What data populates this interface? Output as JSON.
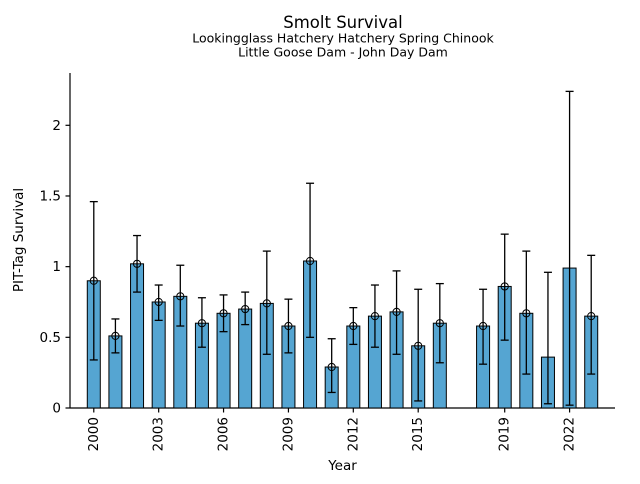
{
  "chart_data": {
    "type": "bar",
    "title": "Smolt Survival",
    "subtitle_line1": "Lookingglass Hatchery Hatchery Spring Chinook",
    "subtitle_line2": "Little Goose Dam - John Day Dam",
    "xlabel": "Year",
    "ylabel": "PIT-Tag Survival",
    "xlim": [
      1998.9,
      2024.1
    ],
    "ylim": [
      0,
      2.37
    ],
    "x_ticks": [
      2000,
      2003,
      2006,
      2009,
      2012,
      2015,
      2019,
      2022
    ],
    "y_ticks": [
      0,
      0.5,
      1,
      1.5,
      2
    ],
    "grid": false,
    "legend_position": "none",
    "missing_years": [
      2017
    ],
    "bar_color": "#55A5D2",
    "bar_edge_color": "#000000",
    "errorbar_color": "#000000",
    "series": [
      {
        "name": "PIT-Tag Survival",
        "points": [
          {
            "year": 2000,
            "value": 0.9,
            "err_lo": 0.34,
            "err_hi": 1.46,
            "marker": true
          },
          {
            "year": 2001,
            "value": 0.51,
            "err_lo": 0.39,
            "err_hi": 0.63,
            "marker": true
          },
          {
            "year": 2002,
            "value": 1.02,
            "err_lo": 0.82,
            "err_hi": 1.22,
            "marker": true
          },
          {
            "year": 2003,
            "value": 0.75,
            "err_lo": 0.62,
            "err_hi": 0.87,
            "marker": true
          },
          {
            "year": 2004,
            "value": 0.79,
            "err_lo": 0.58,
            "err_hi": 1.01,
            "marker": true
          },
          {
            "year": 2005,
            "value": 0.6,
            "err_lo": 0.43,
            "err_hi": 0.78,
            "marker": true
          },
          {
            "year": 2006,
            "value": 0.67,
            "err_lo": 0.54,
            "err_hi": 0.8,
            "marker": true
          },
          {
            "year": 2007,
            "value": 0.7,
            "err_lo": 0.59,
            "err_hi": 0.82,
            "marker": true
          },
          {
            "year": 2008,
            "value": 0.74,
            "err_lo": 0.38,
            "err_hi": 1.11,
            "marker": true
          },
          {
            "year": 2009,
            "value": 0.58,
            "err_lo": 0.39,
            "err_hi": 0.77,
            "marker": true
          },
          {
            "year": 2010,
            "value": 1.04,
            "err_lo": 0.5,
            "err_hi": 1.59,
            "marker": true
          },
          {
            "year": 2011,
            "value": 0.29,
            "err_lo": 0.11,
            "err_hi": 0.49,
            "marker": true
          },
          {
            "year": 2012,
            "value": 0.58,
            "err_lo": 0.45,
            "err_hi": 0.71,
            "marker": true
          },
          {
            "year": 2013,
            "value": 0.65,
            "err_lo": 0.43,
            "err_hi": 0.87,
            "marker": true
          },
          {
            "year": 2014,
            "value": 0.68,
            "err_lo": 0.38,
            "err_hi": 0.97,
            "marker": true
          },
          {
            "year": 2015,
            "value": 0.44,
            "err_lo": 0.05,
            "err_hi": 0.84,
            "marker": true
          },
          {
            "year": 2016,
            "value": 0.6,
            "err_lo": 0.32,
            "err_hi": 0.88,
            "marker": true
          },
          {
            "year": 2018,
            "value": 0.58,
            "err_lo": 0.31,
            "err_hi": 0.84,
            "marker": true
          },
          {
            "year": 2019,
            "value": 0.86,
            "err_lo": 0.48,
            "err_hi": 1.23,
            "marker": true
          },
          {
            "year": 2020,
            "value": 0.67,
            "err_lo": 0.24,
            "err_hi": 1.11,
            "marker": true
          },
          {
            "year": 2021,
            "value": 0.36,
            "err_lo": 0.03,
            "err_hi": 0.96,
            "marker": false
          },
          {
            "year": 2022,
            "value": 0.99,
            "err_lo": 0.02,
            "err_hi": 2.24,
            "marker": false
          },
          {
            "year": 2023,
            "value": 0.65,
            "err_lo": 0.24,
            "err_hi": 1.08,
            "marker": true
          }
        ]
      }
    ]
  }
}
